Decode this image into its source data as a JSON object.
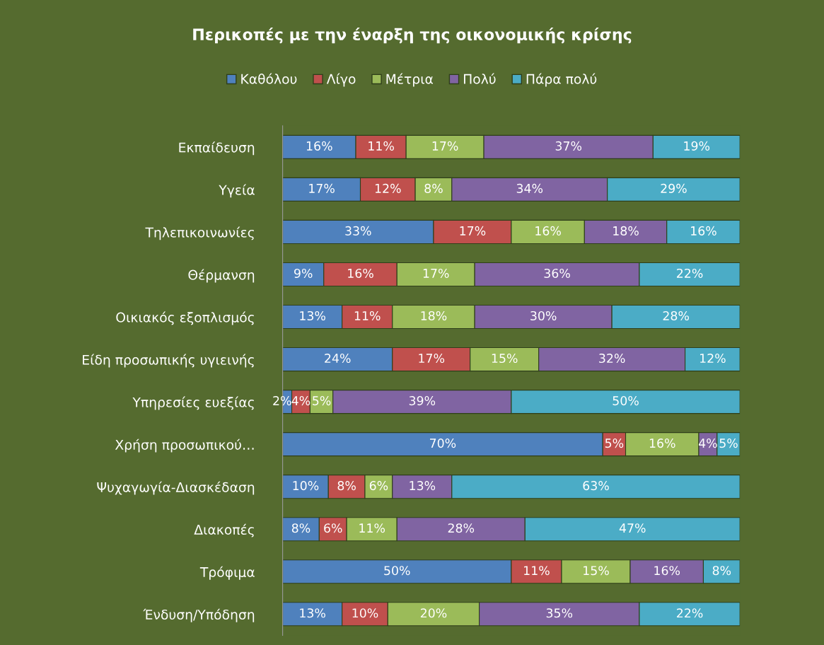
{
  "chart_data": {
    "type": "bar",
    "orientation": "horizontal",
    "stacked": true,
    "title": "Περικοπές με την έναρξη της οικονομικής κρίσης",
    "categories": [
      "Εκπαίδευση",
      "Υγεία",
      "Τηλεπικοινωνίες",
      "Θέρμανση",
      "Οικιακός εξοπλισμός",
      "Είδη προσωπικής υγιεινής",
      "Υπηρεσίες ευεξίας",
      "Χρήση προσωπικού…",
      "Ψυχαγωγία-Διασκέδαση",
      "Διακοπές",
      "Τρόφιμα",
      "Ένδυση/Υπόδηση"
    ],
    "series": [
      {
        "name": "Καθόλου",
        "color": "#4f81bd",
        "values": [
          16,
          17,
          33,
          9,
          13,
          24,
          2,
          70,
          10,
          8,
          50,
          13
        ],
        "value_labels": [
          "16%",
          "17%",
          "33%",
          "9%",
          "13%",
          "24%",
          "2%",
          "70%",
          "10%",
          "8%",
          "50%",
          "13%"
        ]
      },
      {
        "name": "Λίγο",
        "color": "#c0504d",
        "values": [
          11,
          12,
          17,
          16,
          11,
          17,
          4,
          5,
          8,
          6,
          11,
          10
        ],
        "value_labels": [
          "11%",
          "12%",
          "17%",
          "16%",
          "11%",
          "17%",
          "4%",
          "5%",
          "8%",
          "6%",
          "11%",
          "10%"
        ]
      },
      {
        "name": "Μέτρια",
        "color": "#9bbb59",
        "values": [
          17,
          8,
          16,
          17,
          18,
          15,
          5,
          16,
          6,
          11,
          15,
          20
        ],
        "value_labels": [
          "17%",
          "8%",
          "16%",
          "17%",
          "18%",
          "15%",
          "5%",
          "16%",
          "6%",
          "11%",
          "15%",
          "20%"
        ]
      },
      {
        "name": "Πολύ",
        "color": "#8064a2",
        "values": [
          37,
          34,
          18,
          36,
          30,
          32,
          39,
          4,
          13,
          28,
          16,
          35
        ],
        "value_labels": [
          "37%",
          "34%",
          "18%",
          "36%",
          "30%",
          "32%",
          "39%",
          "4%",
          "13%",
          "28%",
          "16%",
          "35%"
        ]
      },
      {
        "name": "Πάρα πολύ",
        "color": "#4bacc6",
        "values": [
          19,
          29,
          16,
          22,
          28,
          12,
          50,
          5,
          63,
          47,
          8,
          22
        ],
        "value_labels": [
          "19%",
          "29%",
          "16%",
          "22%",
          "28%",
          "12%",
          "50%",
          "5%",
          "63%",
          "47%",
          "8%",
          "22%"
        ]
      }
    ],
    "legend": "top",
    "tick_labels": "y",
    "grid": false
  }
}
